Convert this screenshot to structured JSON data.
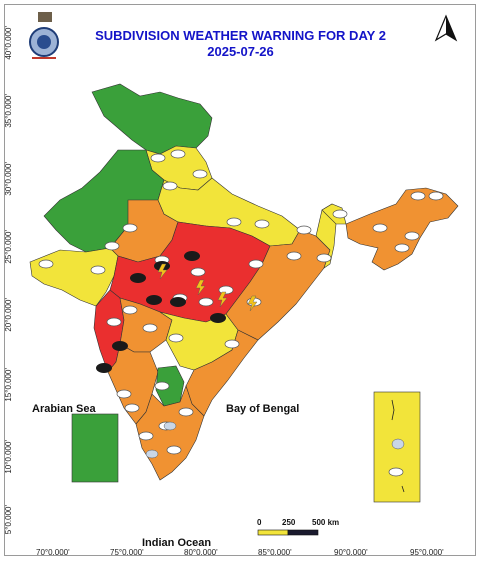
{
  "title": "SUBDIVISION WEATHER WARNING FOR DAY 2",
  "date": "2025-07-26",
  "labels": {
    "arabian_sea": "Arabian Sea",
    "bay_of_bengal": "Bay of Bengal",
    "indian_ocean": "Indian Ocean"
  },
  "latitude_ticks": [
    "5°0.000'",
    "10°0.000'",
    "15°0.000'",
    "20°0.000'",
    "25°0.000'",
    "30°0.000'",
    "35°0.000'",
    "40°0.000'"
  ],
  "longitude_ticks": [
    "70°0.000'",
    "75°0.000'",
    "80°0.000'",
    "85°0.000'",
    "90°0.000'",
    "95°0.000'"
  ],
  "scale_bar": {
    "labels": [
      "0",
      "250",
      "500 km"
    ]
  },
  "north_arrow": "north-arrow-icon",
  "emblem": "imd-emblem-icon",
  "warning_colors": {
    "no_warning": "#3aa03a",
    "watch": "#f2e43a",
    "alert": "#f09232",
    "warning": "#ea2f2f"
  }
}
